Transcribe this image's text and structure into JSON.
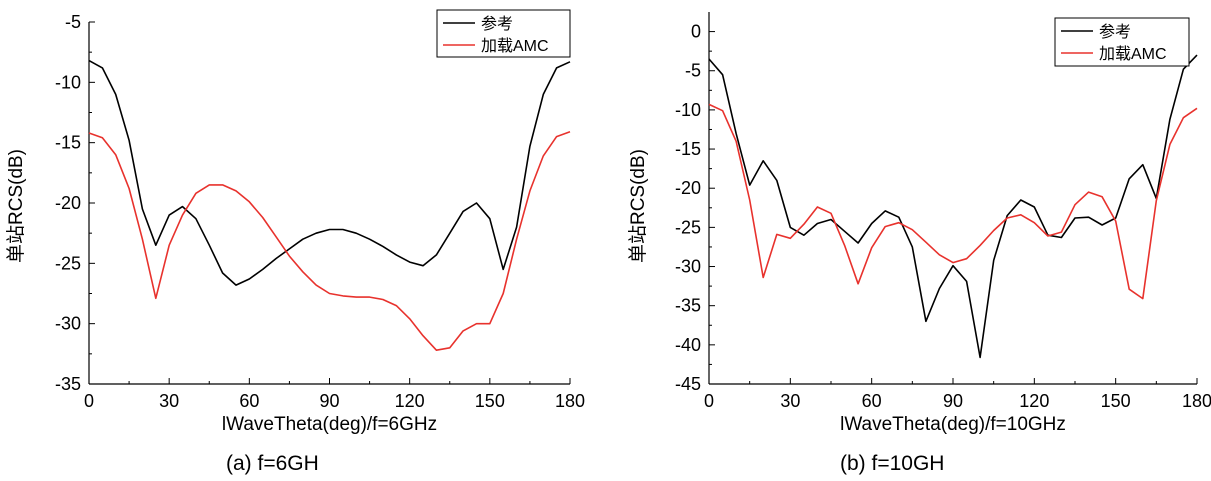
{
  "chart_data": [
    {
      "type": "line",
      "caption": "(a) f=6GH",
      "xlabel": "lWaveTheta(deg)/f=6GHz",
      "ylabel": "单站RCS(dB)",
      "xlim": [
        0,
        180
      ],
      "ylim": [
        -35,
        -5
      ],
      "xticks": [
        0,
        30,
        60,
        90,
        120,
        150,
        180
      ],
      "yticks": [
        -5,
        -10,
        -15,
        -20,
        -25,
        -30,
        -35
      ],
      "legend_position": "top-right",
      "series": [
        {
          "name": "参考",
          "color": "#000000",
          "x": [
            0,
            5,
            10,
            15,
            20,
            25,
            30,
            35,
            40,
            45,
            50,
            55,
            60,
            65,
            70,
            75,
            80,
            85,
            90,
            95,
            100,
            105,
            110,
            115,
            120,
            125,
            130,
            135,
            140,
            145,
            150,
            155,
            160,
            165,
            170,
            175,
            180
          ],
          "y": [
            -8.2,
            -8.8,
            -11.0,
            -14.8,
            -20.5,
            -23.5,
            -21.0,
            -20.3,
            -21.3,
            -23.5,
            -25.8,
            -26.8,
            -26.3,
            -25.5,
            -24.6,
            -23.8,
            -23.0,
            -22.5,
            -22.2,
            -22.2,
            -22.5,
            -23.0,
            -23.6,
            -24.3,
            -24.9,
            -25.2,
            -24.3,
            -22.5,
            -20.7,
            -20.0,
            -21.3,
            -25.5,
            -22.0,
            -15.3,
            -11.0,
            -8.8,
            -8.3
          ]
        },
        {
          "name": "加载AMC",
          "color": "#e8322d",
          "x": [
            0,
            5,
            10,
            15,
            20,
            25,
            30,
            35,
            40,
            45,
            50,
            55,
            60,
            65,
            70,
            75,
            80,
            85,
            90,
            95,
            100,
            105,
            110,
            115,
            120,
            125,
            130,
            135,
            140,
            145,
            150,
            155,
            160,
            165,
            170,
            175,
            180
          ],
          "y": [
            -14.2,
            -14.6,
            -16.0,
            -18.8,
            -23.0,
            -27.9,
            -23.5,
            -21.0,
            -19.2,
            -18.5,
            -18.5,
            -19.0,
            -19.9,
            -21.2,
            -22.8,
            -24.4,
            -25.7,
            -26.8,
            -27.5,
            -27.7,
            -27.8,
            -27.8,
            -28.0,
            -28.5,
            -29.6,
            -31.0,
            -32.2,
            -32.0,
            -30.6,
            -30.0,
            -30.0,
            -27.5,
            -23.0,
            -19.0,
            -16.1,
            -14.5,
            -14.1
          ]
        }
      ]
    },
    {
      "type": "line",
      "caption": "(b) f=10GH",
      "xlabel": "lWaveTheta(deg)/f=10GHz",
      "ylabel": "单站RCS(dB)",
      "xlim": [
        0,
        180
      ],
      "ylim": [
        -45,
        2.5
      ],
      "xticks": [
        0,
        30,
        60,
        90,
        120,
        150,
        180
      ],
      "yticks": [
        0,
        -5,
        -10,
        -15,
        -20,
        -25,
        -30,
        -35,
        -40,
        -45
      ],
      "legend_position": "top-right",
      "series": [
        {
          "name": "参考",
          "color": "#000000",
          "x": [
            0,
            5,
            10,
            15,
            20,
            25,
            30,
            35,
            40,
            45,
            50,
            55,
            60,
            65,
            70,
            75,
            80,
            85,
            90,
            95,
            100,
            105,
            110,
            115,
            120,
            125,
            130,
            135,
            140,
            145,
            150,
            155,
            160,
            165,
            170,
            175,
            180
          ],
          "y": [
            -3.5,
            -5.5,
            -13.0,
            -19.6,
            -16.5,
            -19.0,
            -25.0,
            -26.0,
            -24.5,
            -24.0,
            -25.5,
            -27.0,
            -24.5,
            -22.9,
            -23.7,
            -27.5,
            -37.0,
            -32.8,
            -29.9,
            -31.9,
            -41.6,
            -29.2,
            -23.5,
            -21.5,
            -22.4,
            -26.0,
            -26.3,
            -23.8,
            -23.7,
            -24.7,
            -23.8,
            -18.8,
            -17.0,
            -21.3,
            -11.2,
            -4.8,
            -3.0
          ]
        },
        {
          "name": "加载AMC",
          "color": "#e8322d",
          "x": [
            0,
            5,
            10,
            15,
            20,
            25,
            30,
            35,
            40,
            45,
            50,
            55,
            60,
            65,
            70,
            75,
            80,
            85,
            90,
            95,
            100,
            105,
            110,
            115,
            120,
            125,
            130,
            135,
            140,
            145,
            150,
            155,
            160,
            165,
            170,
            175,
            180
          ],
          "y": [
            -9.3,
            -10.1,
            -14.0,
            -21.5,
            -31.4,
            -25.9,
            -26.4,
            -24.6,
            -22.4,
            -23.2,
            -27.3,
            -32.2,
            -27.6,
            -24.9,
            -24.4,
            -25.3,
            -26.9,
            -28.5,
            -29.5,
            -29.0,
            -27.3,
            -25.4,
            -23.8,
            -23.4,
            -24.4,
            -26.1,
            -25.6,
            -22.1,
            -20.5,
            -21.1,
            -24.2,
            -32.9,
            -34.1,
            -21.6,
            -14.4,
            -11.0,
            -9.8
          ]
        }
      ]
    }
  ]
}
